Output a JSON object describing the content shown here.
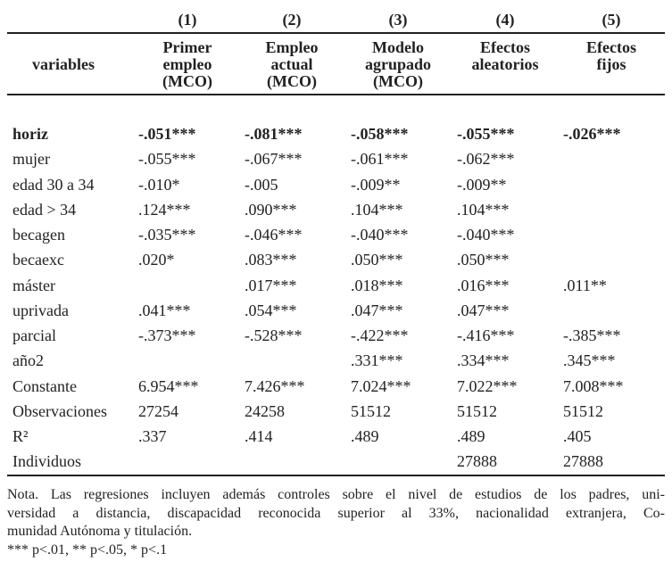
{
  "header": {
    "numbers": [
      "(1)",
      "(2)",
      "(3)",
      "(4)",
      "(5)"
    ],
    "stub": "variables",
    "titles": [
      [
        "Primer",
        "empleo",
        "(MCO)"
      ],
      [
        "Empleo",
        "actual",
        "(MCO)"
      ],
      [
        "Modelo",
        "agrupado",
        "(MCO)"
      ],
      [
        "Efectos",
        "aleatorios"
      ],
      [
        "Efectos",
        "fijos"
      ]
    ]
  },
  "table": {
    "rows": [
      {
        "bold": true,
        "cells": [
          "horiz",
          "-.051***",
          "-.081***",
          "-.058***",
          "-.055***",
          "-.026***"
        ]
      },
      {
        "cells": [
          "mujer",
          "-.055***",
          "-.067***",
          "-.061***",
          "-.062***",
          null
        ]
      },
      {
        "cells": [
          "edad 30 a 34",
          "-.010*",
          "-.005",
          "-.009**",
          "-.009**",
          null
        ]
      },
      {
        "cells": [
          "edad > 34",
          ".124***",
          ".090***",
          ".104***",
          ".104***",
          null
        ]
      },
      {
        "cells": [
          "becagen",
          "-.035***",
          "-.046***",
          "-.040***",
          "-.040***",
          null
        ]
      },
      {
        "cells": [
          "becaexc",
          ".020*",
          ".083***",
          ".050***",
          ".050***",
          null
        ]
      },
      {
        "cells": [
          "máster",
          null,
          ".017***",
          ".018***",
          ".016***",
          ".011**"
        ]
      },
      {
        "cells": [
          "uprivada",
          ".041***",
          ".054***",
          ".047***",
          ".047***",
          null
        ]
      },
      {
        "cells": [
          "parcial",
          "-.373***",
          "-.528***",
          "-.422***",
          "-.416***",
          "-.385***"
        ]
      },
      {
        "cells": [
          "año2",
          null,
          null,
          ".331***",
          ".334***",
          ".345***"
        ]
      },
      {
        "cells": [
          "Constante",
          "6.954***",
          "7.426***",
          "7.024***",
          "7.022***",
          "7.008***"
        ]
      },
      {
        "cells": [
          "Observaciones",
          "27254",
          "24258",
          "51512",
          "51512",
          "51512"
        ]
      },
      {
        "cells": [
          "R²",
          ".337",
          ".414",
          ".489",
          ".489",
          ".405"
        ]
      },
      {
        "cells": [
          "Individuos",
          null,
          null,
          null,
          "27888",
          "27888"
        ]
      }
    ]
  },
  "note": [
    "Nota. Las regresiones incluyen además controles sobre el nivel de estudios de los padres, uni-",
    "versidad a distancia, discapacidad reconocida superior al 33%, nacionalidad extranjera, Co-",
    "munidad Autónoma y titulación.",
    "*** p<.01, ** p<.05, * p<.1"
  ]
}
